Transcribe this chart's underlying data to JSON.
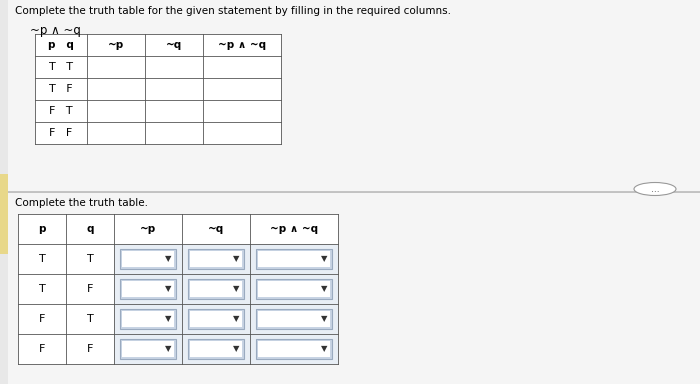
{
  "bg_color": "#e8e8e8",
  "panel_bg": "#f2f2f2",
  "white": "#ffffff",
  "cell_fill_light": "#dde4ee",
  "title_text": "Complete the truth table for the given statement by filling in the required columns.",
  "formula_top": "~p ∧ ~q",
  "top_headers": [
    "p   q",
    "~p",
    "~q",
    "~p ∧ ~q"
  ],
  "top_rows": [
    [
      "T   T",
      "",
      "",
      ""
    ],
    [
      "T   F",
      "",
      "",
      ""
    ],
    [
      "F   T",
      "",
      "",
      ""
    ],
    [
      "F   F",
      "",
      "",
      ""
    ]
  ],
  "bottom_title": "Complete the truth table.",
  "bottom_headers": [
    "p",
    "q",
    "~p",
    "~q",
    "~p ∧ ~q"
  ],
  "bottom_rows": [
    [
      "T",
      "T",
      "▼",
      "▼",
      "▼"
    ],
    [
      "T",
      "F",
      "▼",
      "▼",
      "▼"
    ],
    [
      "F",
      "T",
      "▼",
      "▼",
      "▼"
    ],
    [
      "F",
      "F",
      "▼",
      "▼",
      "▼"
    ]
  ],
  "dots_text": "...",
  "font_size_title": 7.5,
  "font_size_formula": 8.5,
  "font_size_header": 7.5,
  "font_size_cell": 8,
  "font_size_arrow": 6
}
